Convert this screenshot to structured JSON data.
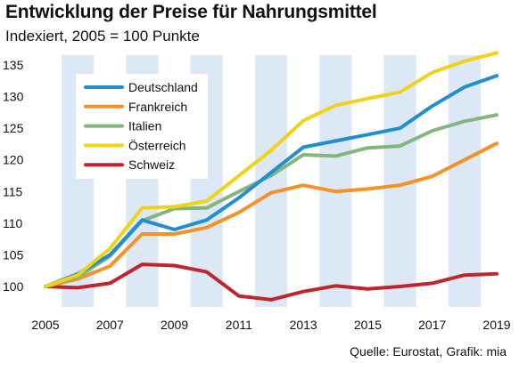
{
  "title": "Entwicklung der Preise für Nahrungsmittel",
  "subtitle": "Indexiert, 2005 = 100 Punkte",
  "source": "Quelle: Eurostat, Grafik: mia",
  "chart_data": {
    "type": "line",
    "title": "Entwicklung der Preise für Nahrungsmittel",
    "subtitle": "Indexiert, 2005 = 100 Punkte",
    "xlabel": "",
    "ylabel": "",
    "x": [
      2005,
      2006,
      2007,
      2008,
      2009,
      2010,
      2011,
      2012,
      2013,
      2014,
      2015,
      2016,
      2017,
      2018,
      2019
    ],
    "x_tick_labels": [
      "2005",
      "2007",
      "2009",
      "2011",
      "2013",
      "2015",
      "2017",
      "2019"
    ],
    "xlim": [
      2005,
      2019
    ],
    "ylim": [
      97,
      137
    ],
    "y_ticks": [
      100,
      105,
      110,
      115,
      120,
      125,
      130,
      135
    ],
    "grid": "alternating vertical year bands",
    "legend_position": "top-left",
    "series": [
      {
        "name": "Deutschland",
        "color": "#1f8fd0",
        "values": [
          100,
          102,
          105,
          110.5,
          109,
          110.5,
          114,
          118,
          122,
          123,
          124,
          125,
          128.5,
          131.5,
          133.3
        ]
      },
      {
        "name": "Frankreich",
        "color": "#f39325",
        "values": [
          100,
          101.2,
          103.2,
          108.3,
          108.3,
          109.3,
          111.7,
          114.8,
          116,
          115,
          115.4,
          116,
          117.4,
          120,
          122.6
        ]
      },
      {
        "name": "Italien",
        "color": "#84b57c",
        "values": [
          100,
          101.5,
          104.8,
          110.4,
          112.3,
          112.4,
          115,
          117.5,
          120.8,
          120.6,
          121.9,
          122.2,
          124.6,
          126.1,
          127.1
        ]
      },
      {
        "name": "Österreich",
        "color": "#f0d21a",
        "values": [
          100,
          101.8,
          106,
          112.4,
          112.6,
          113.5,
          117.5,
          121.5,
          126.2,
          128.6,
          129.7,
          130.7,
          133.8,
          135.6,
          136.9
        ]
      },
      {
        "name": "Schweiz",
        "color": "#c1252b",
        "values": [
          100,
          99.8,
          100.5,
          103.5,
          103.3,
          102.3,
          98.5,
          97.9,
          99.2,
          100.1,
          99.6,
          100,
          100.5,
          101.8,
          102
        ]
      }
    ]
  }
}
